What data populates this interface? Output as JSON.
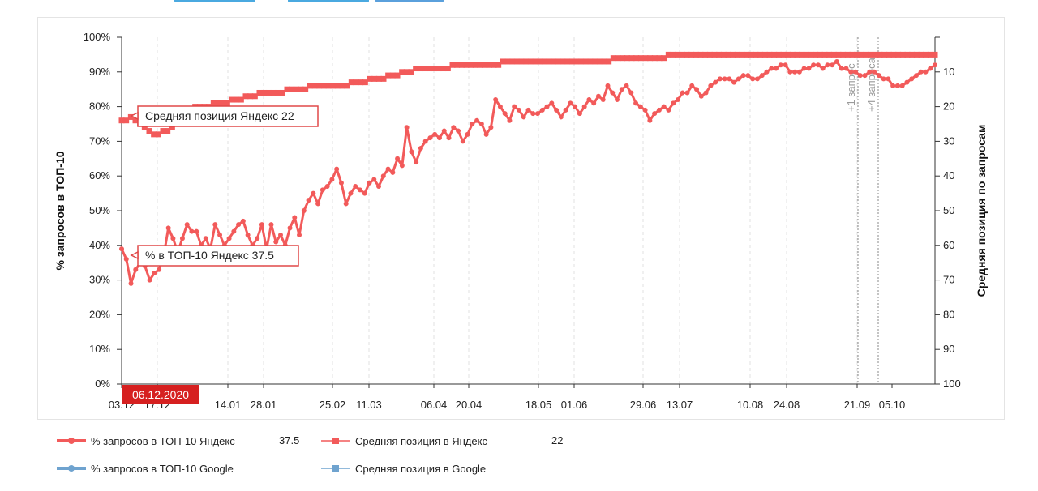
{
  "toolbar": {
    "buttons_color": "#4aa9e0"
  },
  "colors": {
    "yandex": "#f25a5a",
    "google": "#6fa3cf",
    "date_badge": "#d62020"
  },
  "chart_data": {
    "type": "line",
    "x_tick_labels": [
      "03.12",
      "17.12",
      "14.01",
      "28.01",
      "25.02",
      "11.03",
      "06.04",
      "20.04",
      "18.05",
      "01.06",
      "29.06",
      "13.07",
      "10.08",
      "24.08",
      "21.09",
      "05.10"
    ],
    "x_range": [
      "2020-12-03",
      "2020-10-22"
    ],
    "left_axis": {
      "title": "% запросов в ТОП-10",
      "ticks": [
        "0%",
        "10%",
        "20%",
        "30%",
        "40%",
        "50%",
        "60%",
        "70%",
        "80%",
        "90%",
        "100%"
      ],
      "ylim": [
        0,
        100
      ]
    },
    "right_axis": {
      "title": "Средняя позиция по запросам",
      "ticks": [
        "10",
        "20",
        "30",
        "40",
        "50",
        "60",
        "70",
        "80",
        "90",
        "100"
      ],
      "ylim": [
        100,
        0
      ],
      "inverted": true
    },
    "grid": "vertical-dashed",
    "annotations": [
      "+1 запрос",
      "+4 запроса"
    ],
    "crosshair_date": "06.12.2020",
    "tooltips": [
      {
        "label": "Средняя позиция Яндекс",
        "value": "22"
      },
      {
        "label": "% в ТОП-10 Яндекс",
        "value": "37.5"
      }
    ],
    "series": [
      {
        "name": "% запросов в ТОП-10 Яндекс",
        "axis": "left",
        "color": "#f25a5a",
        "values": [
          39,
          36,
          29,
          33,
          35,
          34,
          30,
          32,
          33,
          37,
          45,
          42,
          38,
          42,
          46,
          44,
          44,
          40,
          42,
          39,
          46,
          43,
          40,
          42,
          44,
          46,
          47,
          43,
          40,
          42,
          46,
          39,
          46,
          41,
          43,
          40,
          45,
          48,
          43,
          50,
          53,
          55,
          52,
          56,
          57,
          59,
          62,
          58,
          52,
          55,
          57,
          56,
          55,
          58,
          59,
          57,
          60,
          62,
          61,
          65,
          63,
          74,
          67,
          64,
          68,
          70,
          71,
          72,
          71,
          73,
          71,
          74,
          73,
          70,
          72,
          75,
          76,
          75,
          72,
          74,
          82,
          80,
          78,
          76,
          80,
          79,
          77,
          79,
          78,
          78,
          79,
          80,
          81,
          79,
          77,
          79,
          81,
          80,
          78,
          80,
          82,
          81,
          83,
          82,
          86,
          84,
          82,
          85,
          86,
          84,
          81,
          80,
          79,
          76,
          78,
          79,
          80,
          79,
          81,
          82,
          84,
          84,
          86,
          85,
          83,
          84,
          86,
          87,
          88,
          88,
          88,
          87,
          88,
          89,
          89,
          88,
          88,
          89,
          90,
          91,
          91,
          92,
          92,
          90,
          90,
          90,
          91,
          91,
          92,
          92,
          91,
          92,
          92,
          93,
          91,
          91,
          90,
          90,
          89,
          89,
          90,
          90,
          89,
          88,
          88,
          86,
          86,
          86,
          87,
          88,
          89,
          90,
          90,
          91,
          92
        ]
      },
      {
        "name": "Средняя позиция в Яндекс",
        "axis": "right",
        "color": "#f25a5a",
        "values": [
          24,
          24,
          23,
          24,
          25,
          26,
          27,
          28,
          28,
          27,
          27,
          26,
          24,
          22,
          21,
          21,
          20,
          20,
          20,
          20,
          19,
          19,
          19,
          19,
          18,
          18,
          18,
          17,
          17,
          17,
          16,
          16,
          16,
          16,
          16,
          16,
          15,
          15,
          15,
          15,
          15,
          14,
          14,
          14,
          14,
          14,
          14,
          14,
          14,
          14,
          13,
          13,
          13,
          13,
          12,
          12,
          12,
          12,
          11,
          11,
          11,
          10,
          10,
          10,
          9,
          9,
          9,
          9,
          9,
          9,
          9,
          9,
          8,
          8,
          8,
          8,
          8,
          8,
          8,
          8,
          8,
          8,
          8,
          7,
          7,
          7,
          7,
          7,
          7,
          7,
          7,
          7,
          7,
          7,
          7,
          7,
          7,
          7,
          7,
          7,
          7,
          7,
          7,
          7,
          7,
          7,
          7,
          6,
          6,
          6,
          6,
          6,
          6,
          6,
          6,
          6,
          6,
          6,
          6,
          5,
          5,
          5,
          5,
          5,
          5,
          5,
          5,
          5,
          5,
          5,
          5,
          5,
          5,
          5,
          5,
          5,
          5,
          5,
          5,
          5,
          5,
          5,
          5,
          5,
          5,
          5,
          5,
          5,
          5,
          5,
          5,
          5,
          5,
          5,
          5,
          5,
          5,
          5,
          5,
          5,
          5,
          5,
          5,
          5,
          5,
          5,
          5,
          5,
          5,
          5,
          5,
          5,
          5,
          5,
          5,
          5,
          5,
          5
        ]
      }
    ],
    "legend": [
      {
        "label": "% запросов в ТОП-10 Яндекс",
        "value": "37.5",
        "color": "#f25a5a",
        "marker": "circle"
      },
      {
        "label": "Средняя позиция в Яндекс",
        "value": "22",
        "color": "#f25a5a",
        "marker": "square"
      },
      {
        "label": "% запросов в ТОП-10 Google",
        "value": "",
        "color": "#6fa3cf",
        "marker": "circle"
      },
      {
        "label": "Средняя позиция в Google",
        "value": "",
        "color": "#6fa3cf",
        "marker": "square"
      }
    ]
  }
}
